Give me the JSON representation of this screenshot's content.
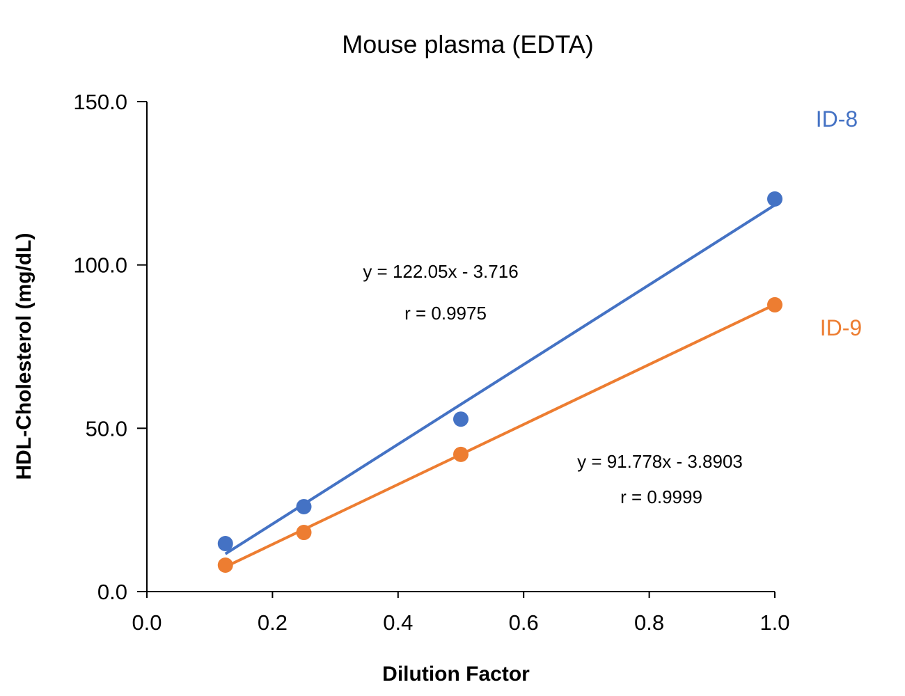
{
  "chart_data": {
    "type": "scatter",
    "title": "Mouse plasma (EDTA)",
    "xlabel": "Dilution Factor",
    "ylabel": "HDL-Cholesterol (mg/dL)",
    "xlim": [
      0,
      1.0
    ],
    "ylim": [
      0,
      150
    ],
    "xticks": [
      "0.0",
      "0.2",
      "0.4",
      "0.6",
      "0.8",
      "1.0"
    ],
    "yticks": [
      "0.0",
      "50.0",
      "100.0",
      "150.0"
    ],
    "grid": false,
    "series": [
      {
        "name": "ID-8",
        "color": "#4472C4",
        "x": [
          0.125,
          0.25,
          0.5,
          1.0
        ],
        "y": [
          14.7,
          26.0,
          52.8,
          120.2
        ],
        "trendline": {
          "slope": 122.05,
          "intercept": -3.716
        },
        "equation": "y = 122.05x - 3.716",
        "r_label": "r = 0.9975"
      },
      {
        "name": "ID-9",
        "color": "#ED7D31",
        "x": [
          0.125,
          0.25,
          0.5,
          1.0
        ],
        "y": [
          8.1,
          18.1,
          42.0,
          87.8
        ],
        "trendline": {
          "slope": 91.778,
          "intercept": -3.8903
        },
        "equation": "y = 91.778x - 3.8903",
        "r_label": "r = 0.9999"
      }
    ]
  }
}
